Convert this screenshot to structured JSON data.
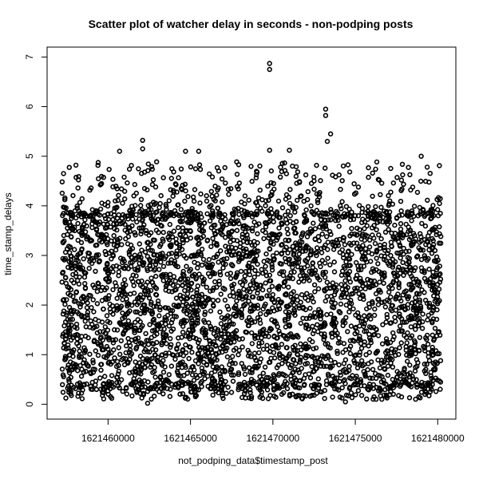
{
  "chart_data": {
    "type": "scatter",
    "title": "Scatter plot of watcher delay in seconds - non-podping posts",
    "xlabel": "not_podping_data$timestamp_post",
    "ylabel": "time_stamp_delays",
    "xlim": [
      1621456300,
      1621481100
    ],
    "ylim": [
      -0.3,
      7.2
    ],
    "x_ticks": [
      1621460000,
      1621465000,
      1621470000,
      1621475000,
      1621480000
    ],
    "y_ticks": [
      0,
      1,
      2,
      3,
      4,
      5,
      6,
      7
    ],
    "marker": "open-circle",
    "grid": false,
    "legend": "none",
    "colors": {
      "points": "#000000",
      "axes": "#000000",
      "background": "#ffffff"
    },
    "x_data_range": [
      1621457200,
      1621480200
    ],
    "dense_y_range": [
      0.3,
      3.9
    ],
    "notable_points": [
      {
        "x": 1621469800,
        "y": 6.87
      },
      {
        "x": 1621469800,
        "y": 6.75
      },
      {
        "x": 1621473200,
        "y": 5.95
      },
      {
        "x": 1621473200,
        "y": 5.82
      },
      {
        "x": 1621473500,
        "y": 5.45
      },
      {
        "x": 1621473300,
        "y": 5.3
      },
      {
        "x": 1621462100,
        "y": 5.32
      },
      {
        "x": 1621462100,
        "y": 5.15
      },
      {
        "x": 1621460700,
        "y": 5.1
      },
      {
        "x": 1621464700,
        "y": 5.1
      },
      {
        "x": 1621465500,
        "y": 5.1
      },
      {
        "x": 1621469800,
        "y": 5.12
      },
      {
        "x": 1621471000,
        "y": 5.12
      },
      {
        "x": 1621479000,
        "y": 5.0
      },
      {
        "x": 1621480100,
        "y": 4.81
      },
      {
        "x": 1621457300,
        "y": 4.65
      },
      {
        "x": 1621462400,
        "y": 0.02
      },
      {
        "x": 1621474400,
        "y": 0.05
      }
    ]
  }
}
